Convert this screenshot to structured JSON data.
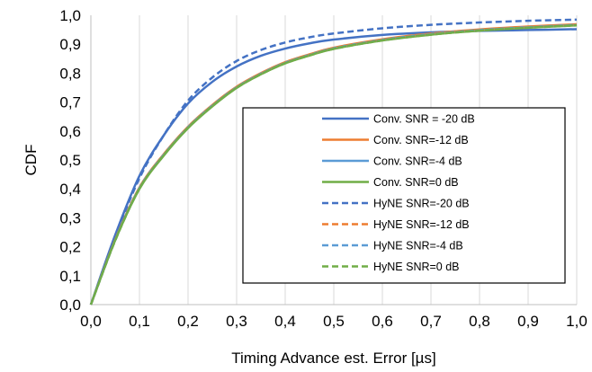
{
  "chart_data": {
    "type": "line",
    "title": "",
    "xlabel": "Timing Advance est. Error [µs]",
    "ylabel": "CDF",
    "xlim": [
      0,
      1
    ],
    "ylim": [
      0,
      1
    ],
    "x_ticks": [
      "0,0",
      "0,1",
      "0,2",
      "0,3",
      "0,4",
      "0,5",
      "0,6",
      "0,7",
      "0,8",
      "0,9",
      "1,0"
    ],
    "y_ticks": [
      "0,0",
      "0,1",
      "0,2",
      "0,3",
      "0,4",
      "0,5",
      "0,6",
      "0,7",
      "0,8",
      "0,9",
      "1,0"
    ],
    "grid": "vertical",
    "legend_position": "center-right",
    "series": [
      {
        "name": "Conv. SNR = -20 dB",
        "color": "#4472c4",
        "dash": "solid",
        "x": [
          0,
          0.05,
          0.1,
          0.15,
          0.2,
          0.25,
          0.3,
          0.35,
          0.4,
          0.45,
          0.5,
          0.6,
          0.7,
          0.8,
          0.9,
          1.0
        ],
        "y": [
          0,
          0.24,
          0.445,
          0.585,
          0.695,
          0.77,
          0.823,
          0.86,
          0.885,
          0.903,
          0.916,
          0.932,
          0.941,
          0.946,
          0.949,
          0.952
        ]
      },
      {
        "name": "Conv. SNR=-12 dB",
        "color": "#ed7d31",
        "dash": "solid",
        "x": [
          0,
          0.05,
          0.1,
          0.15,
          0.2,
          0.25,
          0.3,
          0.35,
          0.4,
          0.45,
          0.5,
          0.6,
          0.7,
          0.8,
          0.9,
          1.0
        ],
        "y": [
          0,
          0.225,
          0.405,
          0.52,
          0.615,
          0.69,
          0.753,
          0.8,
          0.838,
          0.865,
          0.888,
          0.917,
          0.937,
          0.951,
          0.961,
          0.969
        ]
      },
      {
        "name": "Conv. SNR=-4 dB",
        "color": "#5b9bd5",
        "dash": "solid",
        "x": [
          0,
          0.05,
          0.1,
          0.15,
          0.2,
          0.25,
          0.3,
          0.35,
          0.4,
          0.45,
          0.5,
          0.6,
          0.7,
          0.8,
          0.9,
          1.0
        ],
        "y": [
          0,
          0.223,
          0.403,
          0.518,
          0.613,
          0.688,
          0.751,
          0.798,
          0.836,
          0.863,
          0.886,
          0.915,
          0.935,
          0.949,
          0.959,
          0.967
        ]
      },
      {
        "name": "Conv. SNR=0 dB",
        "color": "#70ad47",
        "dash": "solid",
        "x": [
          0,
          0.05,
          0.1,
          0.15,
          0.2,
          0.25,
          0.3,
          0.35,
          0.4,
          0.45,
          0.5,
          0.6,
          0.7,
          0.8,
          0.9,
          1.0
        ],
        "y": [
          0,
          0.222,
          0.4,
          0.515,
          0.61,
          0.685,
          0.749,
          0.796,
          0.834,
          0.861,
          0.884,
          0.913,
          0.933,
          0.947,
          0.957,
          0.965
        ]
      },
      {
        "name": "HyNE SNR=-20 dB",
        "color": "#4472c4",
        "dash": "dashed",
        "x": [
          0,
          0.05,
          0.1,
          0.15,
          0.2,
          0.25,
          0.3,
          0.35,
          0.4,
          0.45,
          0.5,
          0.6,
          0.7,
          0.8,
          0.9,
          1.0
        ],
        "y": [
          0,
          0.235,
          0.437,
          0.585,
          0.705,
          0.785,
          0.842,
          0.88,
          0.906,
          0.924,
          0.937,
          0.955,
          0.967,
          0.975,
          0.981,
          0.985
        ]
      },
      {
        "name": "HyNE SNR=-12 dB",
        "color": "#ed7d31",
        "dash": "dashed",
        "x": [
          0,
          0.05,
          0.1,
          0.15,
          0.2,
          0.25,
          0.3,
          0.35,
          0.4,
          0.45,
          0.5,
          0.6,
          0.7,
          0.8,
          0.9,
          1.0
        ],
        "y": [
          0,
          0.224,
          0.404,
          0.519,
          0.614,
          0.689,
          0.752,
          0.799,
          0.837,
          0.864,
          0.887,
          0.916,
          0.936,
          0.95,
          0.96,
          0.968
        ]
      },
      {
        "name": "HyNE SNR=-4 dB",
        "color": "#5b9bd5",
        "dash": "dashed",
        "x": [
          0,
          0.05,
          0.1,
          0.15,
          0.2,
          0.25,
          0.3,
          0.35,
          0.4,
          0.45,
          0.5,
          0.6,
          0.7,
          0.8,
          0.9,
          1.0
        ],
        "y": [
          0,
          0.222,
          0.402,
          0.517,
          0.612,
          0.687,
          0.75,
          0.797,
          0.835,
          0.862,
          0.885,
          0.914,
          0.934,
          0.948,
          0.958,
          0.966
        ]
      },
      {
        "name": "HyNE SNR=0 dB",
        "color": "#70ad47",
        "dash": "dashed",
        "x": [
          0,
          0.05,
          0.1,
          0.15,
          0.2,
          0.25,
          0.3,
          0.35,
          0.4,
          0.45,
          0.5,
          0.6,
          0.7,
          0.8,
          0.9,
          1.0
        ],
        "y": [
          0,
          0.221,
          0.401,
          0.516,
          0.611,
          0.686,
          0.749,
          0.796,
          0.834,
          0.861,
          0.884,
          0.913,
          0.933,
          0.947,
          0.957,
          0.965
        ]
      }
    ]
  }
}
